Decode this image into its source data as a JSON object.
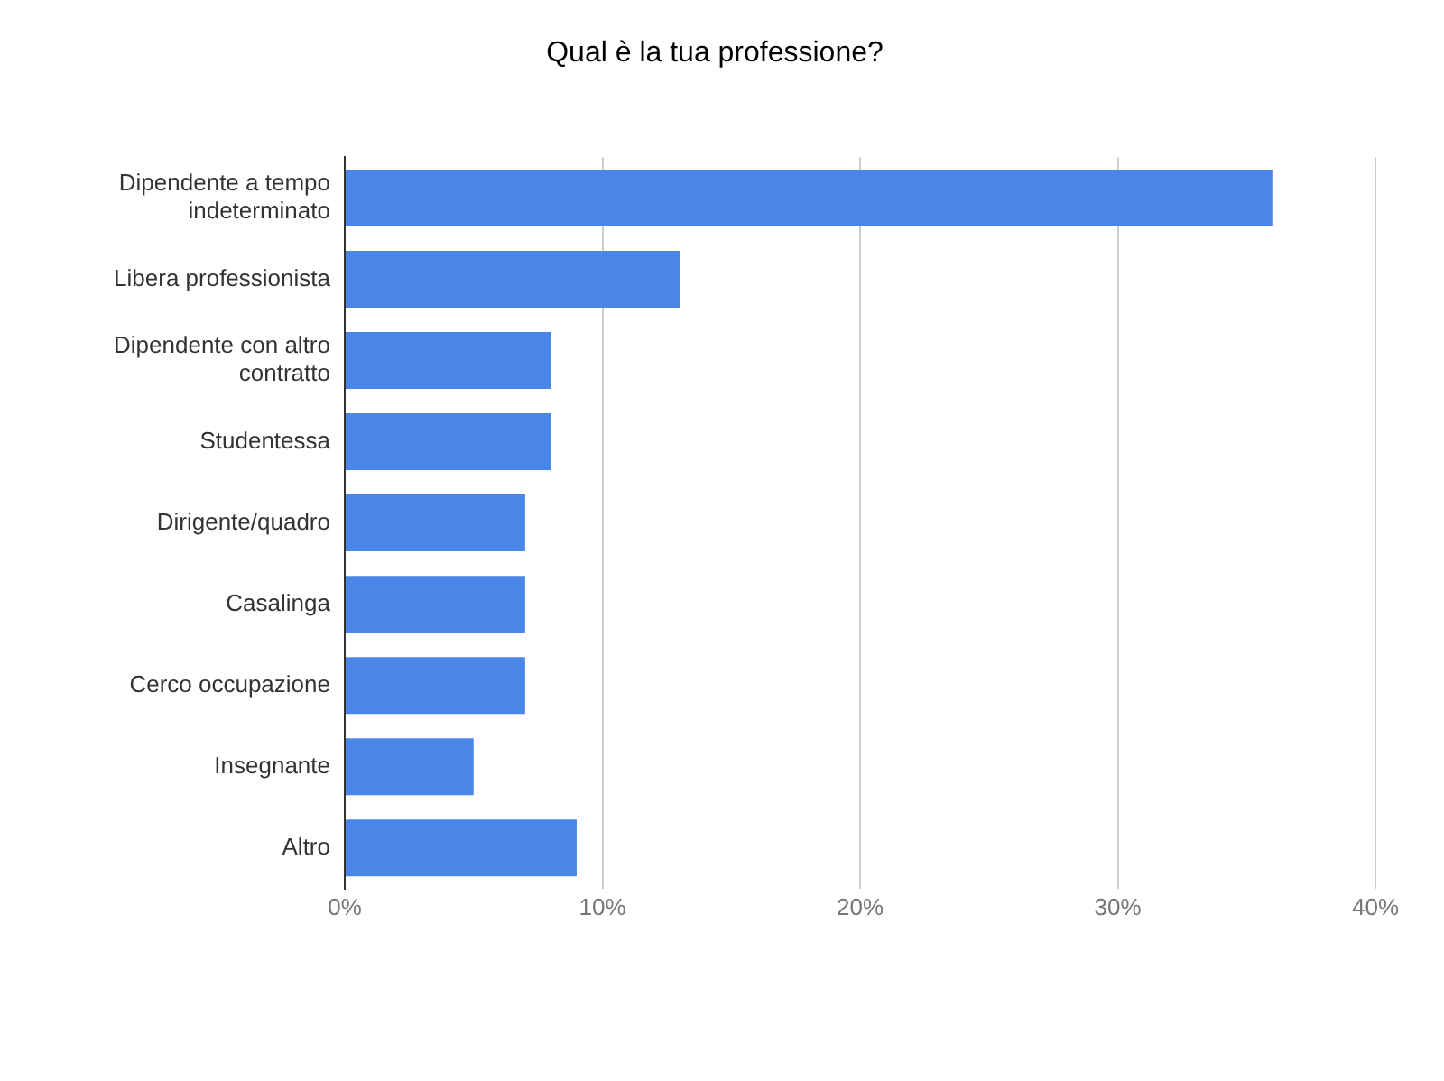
{
  "chart_data": {
    "type": "bar",
    "orientation": "horizontal",
    "title": "Qual è la tua professione?",
    "categories": [
      "Dipendente a tempo indeterminato",
      "Libera professionista",
      "Dipendente con altro contratto",
      "Studentessa",
      "Dirigente/quadro",
      "Casalinga",
      "Cerco occupazione",
      "Insegnante",
      "Altro"
    ],
    "values": [
      36,
      13,
      8,
      8,
      7,
      7,
      7,
      5,
      9
    ],
    "color": "#4a86e8",
    "xlim": [
      0,
      40
    ],
    "xticks": [
      {
        "value": 0,
        "label": "0%"
      },
      {
        "value": 10,
        "label": "10%"
      },
      {
        "value": 20,
        "label": "20%"
      },
      {
        "value": 30,
        "label": "30%"
      },
      {
        "value": 40,
        "label": "40%"
      }
    ],
    "grid": "x"
  }
}
